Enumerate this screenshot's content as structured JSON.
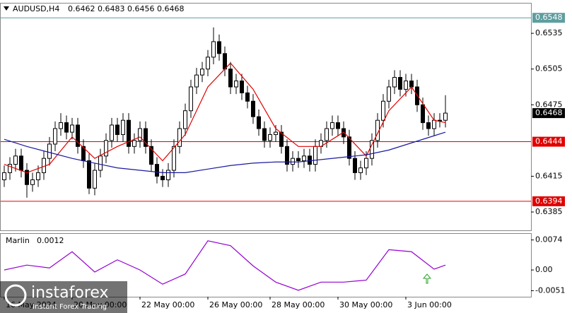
{
  "chart_data": {
    "type": "candlestick",
    "symbol": "AUDUSD,H4",
    "categories": [
      "16 May 2024",
      null,
      null,
      null,
      null,
      null,
      null,
      null,
      null,
      null,
      null,
      null,
      "20 May 00:00",
      null,
      null,
      null,
      null,
      null,
      null,
      null,
      null,
      null,
      null,
      null,
      "22 May 00:00",
      null,
      null,
      null,
      null,
      null,
      null,
      null,
      null,
      null,
      null,
      null,
      "26 May 00:00",
      null,
      null,
      null,
      null,
      null,
      null,
      null,
      null,
      null,
      null,
      "28 May 00:00",
      null,
      null,
      null,
      null,
      null,
      null,
      null,
      null,
      null,
      null,
      null,
      "30 May 00:00",
      null,
      null,
      null,
      null,
      null,
      null,
      null,
      null,
      null,
      null,
      null,
      "3 Jun 00:00",
      null,
      null,
      null,
      null,
      null,
      null,
      null
    ],
    "open": [
      0.6412,
      0.6418,
      0.6425,
      0.6432,
      0.642,
      0.6408,
      0.6412,
      0.6418,
      0.643,
      0.6442,
      0.6455,
      0.646,
      0.6452,
      0.6458,
      0.644,
      0.6428,
      0.6405,
      0.642,
      0.6432,
      0.6445,
      0.6458,
      0.645,
      0.6462,
      0.644,
      0.6445,
      0.6455,
      0.644,
      0.6425,
      0.6415,
      0.6412,
      0.642,
      0.644,
      0.6455,
      0.647,
      0.649,
      0.65,
      0.6505,
      0.6515,
      0.6528,
      0.6518,
      0.6505,
      0.649,
      0.6495,
      0.6485,
      0.6478,
      0.6465,
      0.6455,
      0.6445,
      0.645,
      0.6452,
      0.644,
      0.6425,
      0.643,
      0.6428,
      0.6432,
      0.6425,
      0.644,
      0.6445,
      0.6455,
      0.646,
      0.6455,
      0.6448,
      0.643,
      0.6418,
      0.6422,
      0.643,
      0.6445,
      0.6462,
      0.6478,
      0.649,
      0.6498,
      0.6488,
      0.6495,
      0.649,
      0.6475,
      0.646,
      0.6455,
      0.6462,
      0.6462
    ],
    "high": [
      0.6424,
      0.6431,
      0.6438,
      0.6438,
      0.6426,
      0.6418,
      0.6424,
      0.6436,
      0.6448,
      0.6461,
      0.6468,
      0.6466,
      0.6464,
      0.6464,
      0.6446,
      0.6434,
      0.6426,
      0.6438,
      0.6451,
      0.6464,
      0.6464,
      0.6468,
      0.6468,
      0.6451,
      0.6461,
      0.6461,
      0.6446,
      0.6431,
      0.6421,
      0.6426,
      0.6446,
      0.6461,
      0.6476,
      0.6496,
      0.6506,
      0.6511,
      0.6521,
      0.654,
      0.6534,
      0.6524,
      0.6511,
      0.6501,
      0.6501,
      0.6491,
      0.6484,
      0.6471,
      0.6461,
      0.6456,
      0.6458,
      0.6458,
      0.6446,
      0.6436,
      0.6436,
      0.6438,
      0.6438,
      0.6446,
      0.6451,
      0.6461,
      0.6466,
      0.6466,
      0.6461,
      0.6454,
      0.6436,
      0.6428,
      0.6436,
      0.6451,
      0.6468,
      0.6484,
      0.6496,
      0.6504,
      0.6504,
      0.6501,
      0.6501,
      0.6496,
      0.6481,
      0.6466,
      0.6468,
      0.6468,
      0.6483
    ],
    "low": [
      0.6406,
      0.6412,
      0.6419,
      0.6414,
      0.6397,
      0.6402,
      0.6406,
      0.6412,
      0.6424,
      0.6436,
      0.6449,
      0.6446,
      0.6446,
      0.6434,
      0.6422,
      0.64,
      0.6399,
      0.6414,
      0.6426,
      0.6439,
      0.6444,
      0.6444,
      0.6434,
      0.6434,
      0.6439,
      0.6434,
      0.6419,
      0.6409,
      0.6406,
      0.6406,
      0.6414,
      0.6434,
      0.6449,
      0.6464,
      0.6484,
      0.6494,
      0.6499,
      0.6509,
      0.6512,
      0.6499,
      0.6484,
      0.6484,
      0.6479,
      0.6472,
      0.6459,
      0.6449,
      0.6439,
      0.6439,
      0.6444,
      0.6434,
      0.6419,
      0.6419,
      0.6422,
      0.6422,
      0.6419,
      0.6419,
      0.6434,
      0.6439,
      0.6449,
      0.6449,
      0.6442,
      0.6424,
      0.6412,
      0.6412,
      0.6416,
      0.6424,
      0.6439,
      0.6456,
      0.6472,
      0.6484,
      0.6482,
      0.6482,
      0.6484,
      0.6469,
      0.6454,
      0.6449,
      0.6449,
      0.6456,
      0.6456
    ],
    "close": [
      0.6418,
      0.6425,
      0.6432,
      0.642,
      0.6408,
      0.6412,
      0.6418,
      0.643,
      0.6442,
      0.6455,
      0.646,
      0.6452,
      0.6458,
      0.644,
      0.6428,
      0.6405,
      0.642,
      0.6432,
      0.6445,
      0.6458,
      0.645,
      0.6462,
      0.644,
      0.6445,
      0.6455,
      0.644,
      0.6425,
      0.6415,
      0.6412,
      0.642,
      0.644,
      0.6455,
      0.647,
      0.649,
      0.65,
      0.6505,
      0.6515,
      0.6528,
      0.6518,
      0.6505,
      0.649,
      0.6495,
      0.6485,
      0.6478,
      0.6465,
      0.6455,
      0.6445,
      0.645,
      0.6452,
      0.644,
      0.6425,
      0.643,
      0.6428,
      0.6432,
      0.6425,
      0.644,
      0.6445,
      0.6455,
      0.646,
      0.6455,
      0.6448,
      0.643,
      0.6418,
      0.6422,
      0.643,
      0.6445,
      0.6462,
      0.6478,
      0.649,
      0.6498,
      0.6488,
      0.6495,
      0.649,
      0.6475,
      0.646,
      0.6455,
      0.6462,
      0.6462,
      0.6468
    ],
    "series": [
      {
        "color": "#e00000",
        "x": [
          0,
          4,
          8,
          12,
          16,
          20,
          24,
          28,
          32,
          36,
          40,
          44,
          48,
          52,
          56,
          60,
          64,
          68,
          72,
          76,
          78
        ],
        "values": [
          0.6425,
          0.6418,
          0.6425,
          0.6448,
          0.643,
          0.644,
          0.6448,
          0.6428,
          0.645,
          0.649,
          0.651,
          0.6488,
          0.6455,
          0.644,
          0.644,
          0.6452,
          0.6432,
          0.647,
          0.649,
          0.6462,
          0.646
        ]
      },
      {
        "color": "#1a1aa0",
        "x": [
          0,
          4,
          8,
          12,
          16,
          20,
          24,
          28,
          32,
          36,
          40,
          44,
          48,
          52,
          56,
          60,
          64,
          68,
          72,
          76,
          78
        ],
        "values": [
          0.6446,
          0.644,
          0.6435,
          0.643,
          0.6426,
          0.6422,
          0.642,
          0.6418,
          0.6418,
          0.6421,
          0.6424,
          0.6426,
          0.6427,
          0.6427,
          0.6429,
          0.6431,
          0.6433,
          0.6437,
          0.6443,
          0.6449,
          0.6452
        ]
      }
    ],
    "ylim": [
      0.6369,
      0.656
    ],
    "yticks": [
      0.6535,
      0.6505,
      0.6475,
      0.6415,
      0.6385
    ],
    "levels": [
      {
        "value": 0.6548,
        "color": "#5f9ea0"
      },
      {
        "value": 0.6444,
        "color": "#e00000"
      },
      {
        "value": 0.6394,
        "color": "#e00000"
      }
    ],
    "indicator": {
      "name": "Marlin",
      "color": "#9400d3",
      "x": [
        0,
        4,
        8,
        12,
        16,
        20,
        24,
        28,
        32,
        36,
        40,
        44,
        48,
        52,
        56,
        60,
        64,
        68,
        72,
        76,
        78
      ],
      "values": [
        0.0,
        0.0012,
        0.0005,
        0.0045,
        -0.0005,
        0.0025,
        0.0,
        -0.0035,
        -0.001,
        0.0072,
        0.006,
        0.001,
        -0.003,
        -0.005,
        -0.003,
        -0.003,
        -0.0025,
        0.005,
        0.0045,
        0.0002,
        0.0012
      ],
      "ylim": [
        -0.0066,
        0.0089
      ],
      "yticks": [
        0.0074,
        {
          "value": 0,
          "label": "0.00"
        },
        -0.0051
      ]
    },
    "watermark": {
      "brand": "instaforex",
      "tagline": "Instant Forex Trading"
    }
  }
}
